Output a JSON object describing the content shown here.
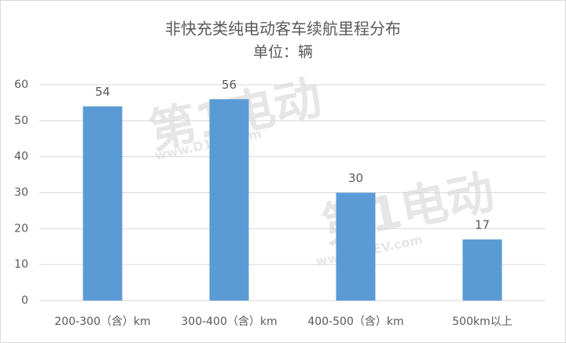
{
  "chart_data": {
    "type": "bar",
    "title": "非快充类纯电动客车续航里程分布",
    "subtitle": "单位：辆",
    "categories": [
      "200-300（含）km",
      "300-400（含）km",
      "400-500（含）km",
      "500km以上"
    ],
    "values": [
      54,
      56,
      30,
      17
    ],
    "color": "#5b9bd5",
    "ylim": [
      0,
      60
    ],
    "yticks": [
      0,
      10,
      20,
      30,
      40,
      50,
      60
    ],
    "grid": true,
    "watermark": [
      "第1电动",
      "www.D1EV.com"
    ]
  }
}
